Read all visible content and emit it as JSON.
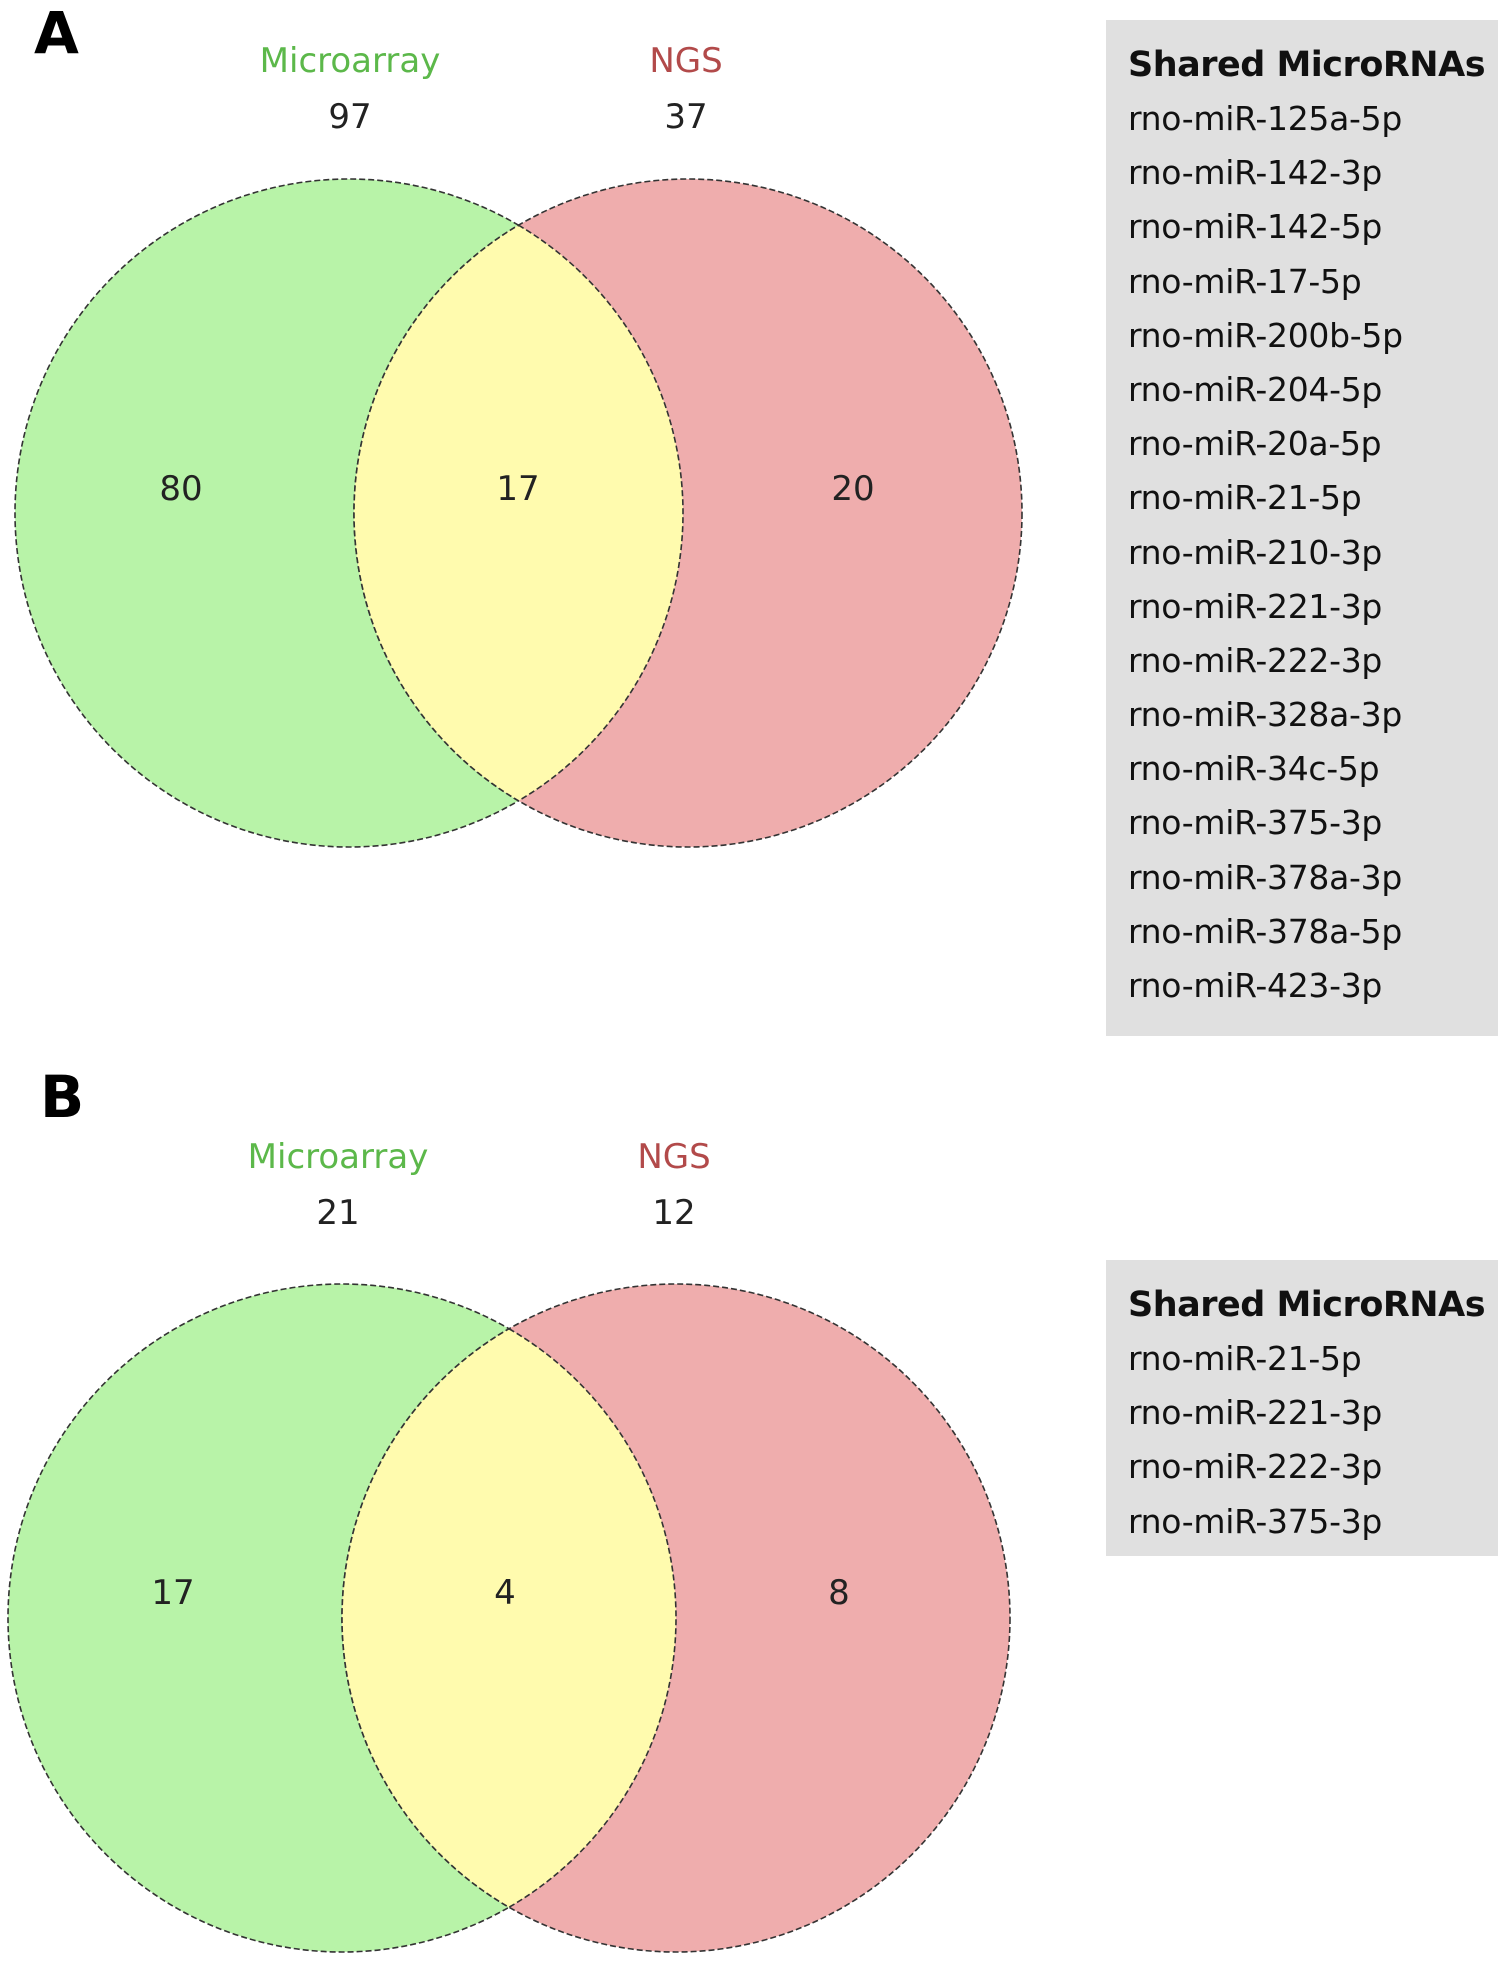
{
  "panels": [
    {
      "letter": "A",
      "set1": {
        "name": "Microarray",
        "total": "97",
        "unique": "80",
        "color": "#b8f3a8",
        "label_color": "#5cb84a"
      },
      "set2": {
        "name": "NGS",
        "total": "37",
        "unique": "20",
        "color": "#efadad",
        "label_color": "#b24a4a"
      },
      "overlap": {
        "value": "17",
        "color": "#fffbae"
      },
      "shared": {
        "title": "Shared MicroRNAs",
        "items": [
          "rno-miR-125a-5p",
          "rno-miR-142-3p",
          "rno-miR-142-5p",
          "rno-miR-17-5p",
          "rno-miR-200b-5p",
          "rno-miR-204-5p",
          "rno-miR-20a-5p",
          "rno-miR-21-5p",
          "rno-miR-210-3p",
          "rno-miR-221-3p",
          "rno-miR-222-3p",
          "rno-miR-328a-3p",
          "rno-miR-34c-5p",
          "rno-miR-375-3p",
          "rno-miR-378a-3p",
          "rno-miR-378a-5p",
          "rno-miR-423-3p"
        ]
      }
    },
    {
      "letter": "B",
      "set1": {
        "name": "Microarray",
        "total": "21",
        "unique": "17",
        "color": "#b8f3a8",
        "label_color": "#5cb84a"
      },
      "set2": {
        "name": "NGS",
        "total": "12",
        "unique": "8",
        "color": "#efadad",
        "label_color": "#b24a4a"
      },
      "overlap": {
        "value": "4",
        "color": "#fffbae"
      },
      "shared": {
        "title": "Shared MicroRNAs",
        "items": [
          "rno-miR-21-5p",
          "rno-miR-221-3p",
          "rno-miR-222-3p",
          "rno-miR-375-3p"
        ]
      }
    }
  ]
}
